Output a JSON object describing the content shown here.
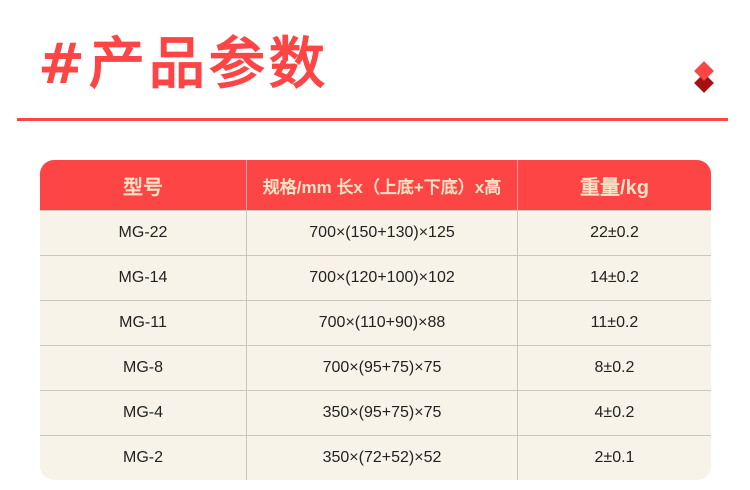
{
  "title": "#产品参数",
  "colors": {
    "accent": "#fd4545",
    "accent_dark": "#a51010",
    "header_text": "#fde3c6",
    "row_bg": "#f8f3e8"
  },
  "table": {
    "headers": [
      "型号",
      "规格/mm 长x（上底+下底）x高",
      "重量/kg"
    ],
    "rows": [
      [
        "MG-22",
        "700×(150+130)×125",
        "22±0.2"
      ],
      [
        "MG-14",
        "700×(120+100)×102",
        "14±0.2"
      ],
      [
        "MG-11",
        "700×(110+90)×88",
        "11±0.2"
      ],
      [
        "MG-8",
        "700×(95+75)×75",
        "8±0.2"
      ],
      [
        "MG-4",
        "350×(95+75)×75",
        "4±0.2"
      ],
      [
        "MG-2",
        "350×(72+52)×52",
        "2±0.1"
      ]
    ]
  }
}
